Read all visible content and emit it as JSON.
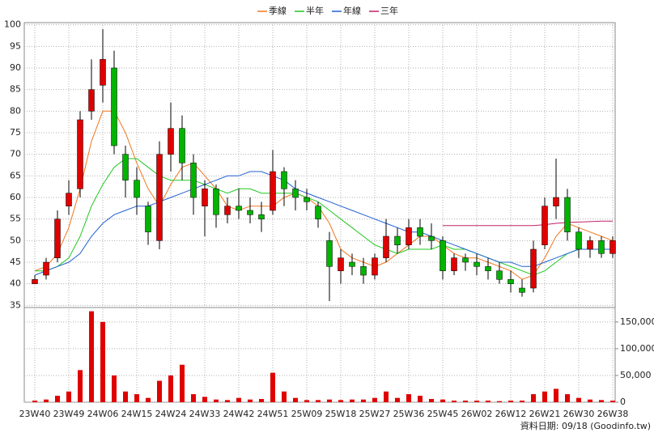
{
  "chart_data": {
    "type": "candlestick",
    "legend_position": "top",
    "grid": true,
    "up_color": "#e00000",
    "down_color": "#00b400",
    "wick_color": "#000000",
    "categories": [
      "23W40",
      null,
      null,
      "23W49",
      null,
      null,
      "24W06",
      null,
      null,
      "24W15",
      null,
      null,
      "24W24",
      null,
      null,
      "24W33",
      null,
      null,
      "24W42",
      null,
      null,
      "24W51",
      null,
      null,
      "25W09",
      null,
      null,
      "25W18",
      null,
      null,
      "25W27",
      null,
      null,
      "25W36",
      null,
      null,
      "25W45",
      null,
      null,
      "26W02",
      null,
      null,
      "26W12",
      null,
      null,
      "26W21",
      null,
      null,
      "26W30",
      null,
      null,
      "26W38"
    ],
    "open": [
      40,
      42,
      46,
      58,
      62,
      80,
      86,
      90,
      70,
      64,
      58,
      50,
      70,
      76,
      68,
      58,
      62,
      56,
      58,
      57,
      56,
      57,
      66,
      62,
      60,
      58,
      50,
      43,
      45,
      44,
      42,
      46,
      51,
      49,
      53,
      51,
      50,
      43,
      46,
      45,
      44,
      43,
      41,
      39,
      39,
      49,
      58,
      60,
      52,
      48,
      50,
      47
    ],
    "high": [
      42,
      46,
      57,
      64,
      80,
      92,
      99,
      94,
      72,
      67,
      59,
      73,
      82,
      79,
      70,
      64,
      63,
      60,
      62,
      60,
      59,
      71,
      67,
      64,
      62,
      59,
      52,
      48,
      47,
      46,
      47,
      55,
      53,
      55,
      55,
      54,
      51,
      47,
      47,
      47,
      46,
      45,
      43,
      41,
      50,
      60,
      69,
      62,
      53,
      51,
      51,
      51
    ],
    "low": [
      40,
      41,
      45,
      56,
      60,
      78,
      82,
      70,
      60,
      56,
      49,
      48,
      66,
      64,
      56,
      51,
      53,
      54,
      55,
      54,
      52,
      56,
      58,
      57,
      57,
      53,
      36,
      40,
      42,
      40,
      41,
      45,
      47,
      48,
      49,
      48,
      41,
      42,
      43,
      42,
      41,
      40,
      38,
      37,
      38,
      48,
      55,
      50,
      46,
      46,
      46,
      46
    ],
    "close": [
      41,
      45,
      55,
      61,
      78,
      85,
      92,
      72,
      64,
      60,
      52,
      70,
      76,
      68,
      60,
      62,
      56,
      58,
      57,
      56,
      55,
      66,
      62,
      60,
      59,
      55,
      44,
      46,
      44,
      42,
      46,
      51,
      49,
      53,
      51,
      50,
      43,
      46,
      45,
      44,
      43,
      41,
      40,
      38,
      48,
      58,
      60,
      52,
      48,
      50,
      47,
      50
    ],
    "ylim": [
      34.5,
      100.5
    ],
    "yticks": [
      35,
      40,
      45,
      50,
      55,
      60,
      65,
      70,
      75,
      80,
      85,
      90,
      95,
      100
    ],
    "series": [
      {
        "name": "季線",
        "color": "#f07820",
        "values": [
          43,
          44,
          47,
          53,
          62,
          73,
          80,
          80,
          75,
          68,
          62,
          58,
          63,
          67,
          68,
          65,
          62,
          58,
          57,
          58,
          58,
          58,
          60,
          61,
          60,
          58,
          54,
          48,
          46,
          45,
          44,
          45,
          47,
          49,
          51,
          51,
          49,
          47,
          46,
          46,
          45,
          44,
          43,
          41,
          42,
          46,
          51,
          54,
          53,
          52,
          51,
          50
        ]
      },
      {
        "name": "半年",
        "color": "#20c820",
        "values": [
          43,
          43,
          44,
          46,
          51,
          58,
          63,
          67,
          69,
          69,
          67,
          65,
          64,
          64,
          64,
          63,
          62,
          61,
          62,
          62,
          61,
          61,
          61,
          61,
          60,
          59,
          57,
          55,
          53,
          51,
          49,
          48,
          47,
          48,
          48,
          48,
          49,
          48,
          48,
          47,
          46,
          45,
          44,
          43,
          42,
          43,
          45,
          47,
          48,
          48,
          48,
          48
        ]
      },
      {
        "name": "年線",
        "color": "#2060d0",
        "values": [
          42,
          43,
          44,
          45,
          47,
          51,
          54,
          56,
          57,
          58,
          58,
          59,
          60,
          61,
          62,
          63,
          64,
          65,
          65,
          66,
          66,
          65,
          64,
          62,
          61,
          60,
          59,
          58,
          57,
          56,
          55,
          54,
          53,
          52,
          52,
          51,
          50,
          49,
          48,
          47,
          46,
          45,
          45,
          44,
          44,
          45,
          46,
          47,
          48,
          48,
          48,
          48
        ]
      },
      {
        "name": "三年",
        "color": "#c0206a",
        "values": [
          null,
          null,
          null,
          null,
          null,
          null,
          null,
          null,
          null,
          null,
          null,
          null,
          null,
          null,
          null,
          null,
          null,
          null,
          null,
          null,
          null,
          null,
          null,
          null,
          null,
          null,
          null,
          null,
          null,
          null,
          null,
          null,
          null,
          null,
          null,
          null,
          53.5,
          53.5,
          53.5,
          53.5,
          53.5,
          53.5,
          53.5,
          53.5,
          53.5,
          53.7,
          54,
          54.2,
          54.3,
          54.4,
          54.5,
          54.5
        ]
      }
    ],
    "volume": {
      "color": "#e00000",
      "values": [
        3000,
        5000,
        12000,
        20000,
        60000,
        170000,
        150000,
        50000,
        20000,
        15000,
        8000,
        40000,
        50000,
        70000,
        15000,
        10000,
        5000,
        4000,
        8000,
        5000,
        6000,
        55000,
        20000,
        8000,
        4000,
        4000,
        5000,
        4000,
        5000,
        5000,
        8000,
        20000,
        8000,
        15000,
        12000,
        6000,
        5000,
        3000,
        3000,
        3000,
        3000,
        2000,
        3000,
        3000,
        15000,
        20000,
        25000,
        15000,
        8000,
        5000,
        4000,
        3000
      ],
      "ylim": [
        0,
        177000
      ],
      "yticks": [
        0,
        {
          "value": 50000,
          "label": "50,000"
        },
        {
          "value": 100000,
          "label": "100,000"
        },
        {
          "value": 150000,
          "label": "150,000"
        }
      ]
    },
    "footer": "資料日期: 09/18 (Goodinfo.tw)"
  }
}
